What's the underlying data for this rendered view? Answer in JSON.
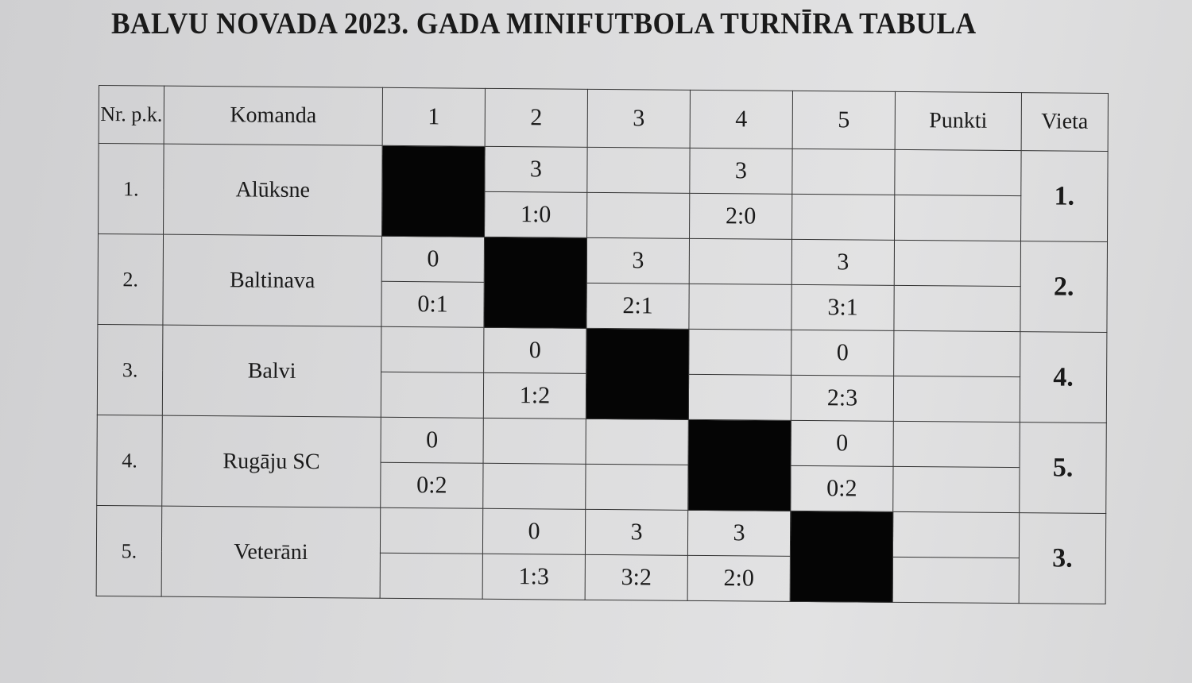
{
  "title": "BALVU NOVADA 2023. GADA  MINIFUTBOLA TURNĪRA TABULA",
  "headers": {
    "nr": "Nr. p.k.",
    "team": "Komanda",
    "cols": [
      "1",
      "2",
      "3",
      "4",
      "5"
    ],
    "points": "Punkti",
    "place": "Vieta"
  },
  "rows": [
    {
      "nr": "1.",
      "team": "Alūksne",
      "place": "1.",
      "cells": [
        null,
        {
          "pts": "3",
          "score": "1:0"
        },
        {
          "pts": "",
          "score": ""
        },
        {
          "pts": "3",
          "score": "2:0"
        },
        {
          "pts": "",
          "score": ""
        }
      ]
    },
    {
      "nr": "2.",
      "team": "Baltinava",
      "place": "2.",
      "cells": [
        {
          "pts": "0",
          "score": "0:1"
        },
        null,
        {
          "pts": "3",
          "score": "2:1"
        },
        {
          "pts": "",
          "score": ""
        },
        {
          "pts": "3",
          "score": "3:1"
        }
      ]
    },
    {
      "nr": "3.",
      "team": "Balvi",
      "place": "4.",
      "cells": [
        {
          "pts": "",
          "score": ""
        },
        {
          "pts": "0",
          "score": "1:2"
        },
        null,
        {
          "pts": "",
          "score": ""
        },
        {
          "pts": "0",
          "score": "2:3"
        }
      ]
    },
    {
      "nr": "4.",
      "team": "Rugāju SC",
      "place": "5.",
      "cells": [
        {
          "pts": "0",
          "score": "0:2"
        },
        {
          "pts": "",
          "score": ""
        },
        {
          "pts": "",
          "score": ""
        },
        null,
        {
          "pts": "0",
          "score": "0:2"
        }
      ]
    },
    {
      "nr": "5.",
      "team": "Veterāni",
      "place": "3.",
      "cells": [
        {
          "pts": "",
          "score": ""
        },
        {
          "pts": "0",
          "score": "1:3"
        },
        {
          "pts": "3",
          "score": "3:2"
        },
        {
          "pts": "3",
          "score": "2:0"
        },
        null
      ]
    }
  ]
}
